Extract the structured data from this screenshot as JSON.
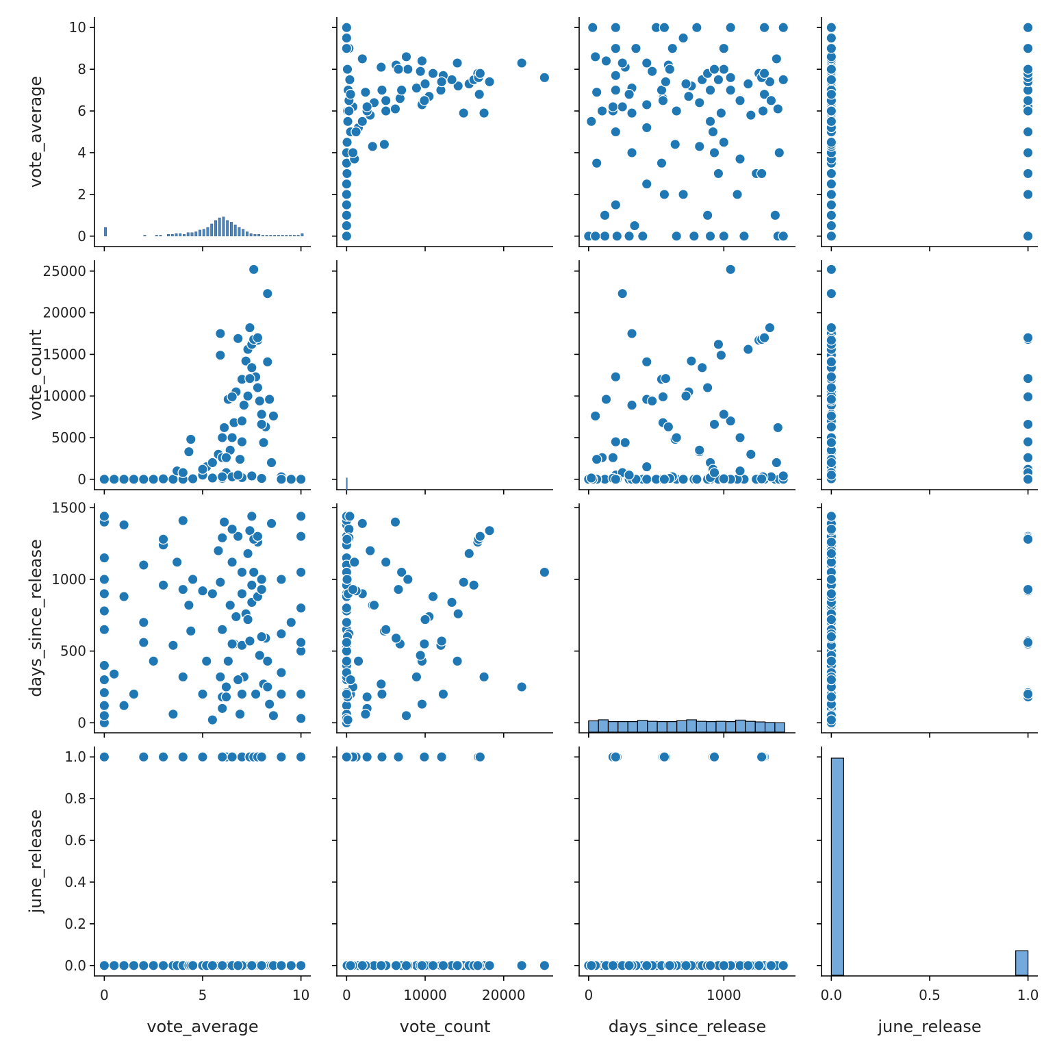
{
  "figure": {
    "variables": [
      "vote_average",
      "vote_count",
      "days_since_release",
      "june_release"
    ],
    "diag_kind": "hist",
    "marker_color": "#1f77b4"
  },
  "chart_data": {
    "type": "scatter",
    "variables": [
      {
        "name": "vote_average",
        "label": "vote_average",
        "lim": [
          -0.5,
          10.5
        ],
        "ticks": [
          0,
          5,
          10
        ],
        "tick_labels": [
          "0",
          "5",
          "10"
        ],
        "row_ticks": [
          0,
          2,
          4,
          6,
          8,
          10
        ],
        "row_tick_labels": [
          "0",
          "2",
          "4",
          "6",
          "8",
          "10"
        ],
        "row_lim": [
          -0.5,
          10.5
        ]
      },
      {
        "name": "vote_count",
        "label": "vote_count",
        "lim": [
          -1250,
          26300
        ],
        "ticks": [
          0,
          10000,
          20000
        ],
        "tick_labels": [
          "0",
          "10000",
          "20000"
        ],
        "row_ticks": [
          0,
          5000,
          10000,
          15000,
          20000,
          25000
        ],
        "row_tick_labels": [
          "0",
          "5000",
          "10000",
          "15000",
          "20000",
          "25000"
        ],
        "row_lim": [
          -1250,
          26300
        ]
      },
      {
        "name": "days_since_release",
        "label": "days_since_release",
        "lim": [
          -70,
          1530
        ],
        "ticks": [
          0,
          1000
        ],
        "tick_labels": [
          "0",
          "1000"
        ],
        "row_ticks": [
          0,
          500,
          1000,
          1500
        ],
        "row_tick_labels": [
          "0",
          "500",
          "1000",
          "1500"
        ],
        "row_lim": [
          -70,
          1530
        ]
      },
      {
        "name": "june_release",
        "label": "june_release",
        "lim": [
          -0.05,
          1.05
        ],
        "ticks": [
          0,
          0.5,
          1
        ],
        "tick_labels": [
          "0.0",
          "0.5",
          "1.0"
        ],
        "row_ticks": [
          0,
          0.2,
          0.4,
          0.6,
          0.8,
          1.0
        ],
        "row_tick_labels": [
          "0.0",
          "0.2",
          "0.4",
          "0.6",
          "0.8",
          "1.0"
        ],
        "row_lim": [
          -0.05,
          1.05
        ]
      }
    ],
    "points": [
      [
        0,
        0,
        0,
        0
      ],
      [
        0,
        0,
        120,
        0
      ],
      [
        0,
        0,
        400,
        0
      ],
      [
        0,
        0,
        650,
        0
      ],
      [
        0,
        0,
        900,
        0
      ],
      [
        0,
        0,
        1150,
        0
      ],
      [
        0,
        0,
        1400,
        0
      ],
      [
        0,
        0,
        1440,
        0
      ],
      [
        0,
        0,
        50,
        0
      ],
      [
        0,
        0,
        300,
        0
      ],
      [
        0,
        0,
        1000,
        0
      ],
      [
        0,
        0,
        780,
        0
      ],
      [
        0.5,
        0,
        340,
        0
      ],
      [
        1.0,
        0,
        880,
        0
      ],
      [
        1.0,
        0,
        120,
        0
      ],
      [
        1.0,
        0,
        1380,
        0
      ],
      [
        1.5,
        0,
        200,
        0
      ],
      [
        2.0,
        0,
        700,
        0
      ],
      [
        2.0,
        0,
        1100,
        0
      ],
      [
        2.5,
        0,
        430,
        0
      ],
      [
        3.0,
        0,
        960,
        0
      ],
      [
        3.0,
        0,
        1240,
        0
      ],
      [
        3.5,
        0,
        60,
        0
      ],
      [
        3.5,
        0,
        540,
        0
      ],
      [
        3.7,
        1000,
        1120,
        0
      ],
      [
        4.0,
        0,
        320,
        0
      ],
      [
        4.0,
        0,
        1410,
        0
      ],
      [
        4.3,
        3300,
        820,
        0
      ],
      [
        4.4,
        4800,
        640,
        0
      ],
      [
        10,
        0,
        30,
        0
      ],
      [
        10,
        0,
        200,
        0
      ],
      [
        10,
        0,
        500,
        0
      ],
      [
        10,
        0,
        800,
        0
      ],
      [
        10,
        0,
        1050,
        0
      ],
      [
        10,
        0,
        1300,
        0
      ],
      [
        10,
        0,
        1440,
        0
      ],
      [
        9.5,
        0,
        700,
        0
      ],
      [
        9.0,
        0,
        1000,
        0
      ],
      [
        9.0,
        0,
        350,
        0
      ],
      [
        5.0,
        500,
        200,
        0
      ],
      [
        5.2,
        1500,
        430,
        0
      ],
      [
        5.5,
        2000,
        900,
        0
      ],
      [
        5.8,
        3000,
        1200,
        0
      ],
      [
        5.9,
        17500,
        320,
        0
      ],
      [
        5.9,
        14900,
        980,
        0
      ],
      [
        6.0,
        2600,
        100,
        0
      ],
      [
        6.0,
        5000,
        650,
        0
      ],
      [
        6.1,
        6200,
        1400,
        0
      ],
      [
        6.2,
        800,
        250,
        0
      ],
      [
        6.3,
        9600,
        430,
        0
      ],
      [
        6.4,
        3500,
        820,
        0
      ],
      [
        6.5,
        5000,
        1120,
        0
      ],
      [
        6.6,
        6800,
        550,
        0
      ],
      [
        6.7,
        10500,
        740,
        0
      ],
      [
        6.8,
        16900,
        1300,
        0
      ],
      [
        6.9,
        2400,
        60,
        0
      ],
      [
        7.0,
        7000,
        1050,
        0
      ],
      [
        7.0,
        12000,
        540,
        0
      ],
      [
        7.1,
        8900,
        320,
        0
      ],
      [
        7.2,
        14200,
        760,
        0
      ],
      [
        7.3,
        15600,
        1180,
        0
      ],
      [
        7.3,
        10000,
        720,
        0
      ],
      [
        7.4,
        18200,
        1340,
        0
      ],
      [
        7.5,
        13400,
        840,
        0
      ],
      [
        7.5,
        16200,
        960,
        0
      ],
      [
        7.6,
        25200,
        1050,
        0
      ],
      [
        7.7,
        12300,
        200,
        0
      ],
      [
        7.8,
        16700,
        1260,
        0
      ],
      [
        7.8,
        11000,
        880,
        0
      ],
      [
        7.9,
        9400,
        470,
        0
      ],
      [
        8.0,
        7800,
        1000,
        0
      ],
      [
        8.1,
        4400,
        270,
        0
      ],
      [
        8.2,
        6300,
        590,
        0
      ],
      [
        8.3,
        22300,
        250,
        0
      ],
      [
        8.3,
        14100,
        430,
        0
      ],
      [
        8.4,
        9600,
        130,
        0
      ],
      [
        8.5,
        2000,
        1390,
        0
      ],
      [
        8.6,
        7600,
        50,
        0
      ],
      [
        9.0,
        300,
        620,
        0
      ],
      [
        6.0,
        120,
        180,
        0
      ],
      [
        6.5,
        300,
        1350,
        0
      ],
      [
        7.0,
        200,
        900,
        0
      ],
      [
        5.5,
        150,
        20,
        0
      ],
      [
        7.5,
        400,
        1440,
        0
      ],
      [
        8.0,
        100,
        600,
        0
      ],
      [
        4.5,
        60,
        1000,
        0
      ],
      [
        6.8,
        500,
        300,
        0
      ],
      [
        6.2,
        2600,
        180,
        1
      ],
      [
        7.0,
        4500,
        200,
        1
      ],
      [
        6.5,
        9900,
        550,
        1
      ],
      [
        7.4,
        12100,
        570,
        1
      ],
      [
        7.6,
        16800,
        1280,
        1
      ],
      [
        7.8,
        17000,
        1300,
        1
      ],
      [
        5.0,
        1200,
        920,
        1
      ],
      [
        8.0,
        6600,
        930,
        1
      ],
      [
        6.0,
        300,
        1290,
        1
      ],
      [
        0,
        0,
        210,
        1
      ],
      [
        10,
        0,
        560,
        1
      ],
      [
        4.0,
        800,
        930,
        1
      ],
      [
        3.0,
        50,
        1280,
        1
      ],
      [
        9.0,
        0,
        200,
        1
      ],
      [
        2.0,
        0,
        560,
        1
      ]
    ],
    "vote_average_hist": {
      "edges_start": 0,
      "bin_width": 0.2,
      "counts": [
        10,
        0,
        0,
        0,
        0,
        0,
        0,
        0,
        0,
        0,
        1,
        0,
        0,
        1,
        1,
        0,
        2,
        2,
        3,
        3,
        2,
        4,
        4,
        5,
        7,
        8,
        10,
        14,
        18,
        21,
        22,
        18,
        16,
        13,
        10,
        8,
        5,
        3,
        2,
        2,
        1,
        1,
        1,
        1,
        1,
        1,
        1,
        1,
        1,
        1,
        3
      ]
    },
    "days_since_release_hist": {
      "edges_start": 0,
      "bin_width": 72.5,
      "counts": [
        75,
        82,
        70,
        70,
        70,
        78,
        72,
        70,
        70,
        76,
        82,
        72,
        70,
        72,
        70,
        80,
        72,
        68,
        64,
        62
      ]
    },
    "june_release_hist": {
      "bins": [
        {
          "x0": 0.0,
          "x1": 0.0625,
          "count": 1000
        },
        {
          "x0": 0.9375,
          "x1": 1.0,
          "count": 113
        }
      ]
    }
  }
}
